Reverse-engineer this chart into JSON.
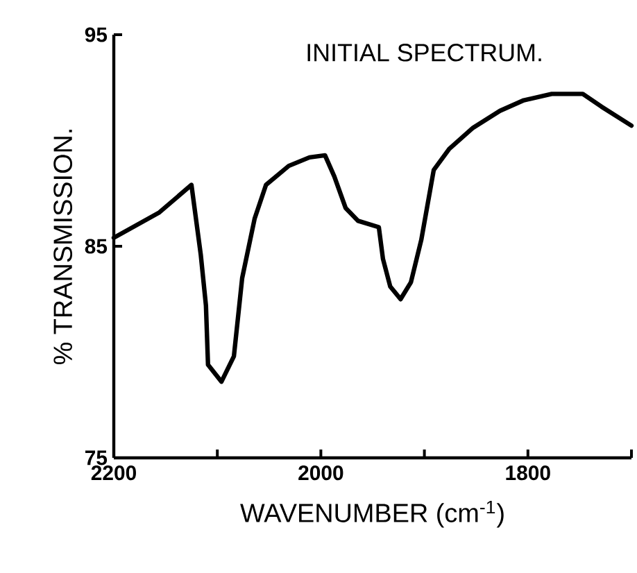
{
  "chart_data": {
    "type": "line",
    "title": "INITIAL SPECTRUM.",
    "xlabel": "WAVENUMBER (cm$^{-1}$)",
    "ylabel": "% TRANSMISSION.",
    "x": [
      2200,
      2156,
      2125,
      2116,
      2111,
      2109,
      2096,
      2084,
      2076,
      2064,
      2053,
      2031,
      2011,
      1996,
      1987,
      1976,
      1964,
      1944,
      1940,
      1933,
      1923,
      1913,
      1903,
      1891,
      1876,
      1853,
      1827,
      1804,
      1777,
      1747,
      1729,
      1700
    ],
    "series": [
      {
        "color": "#000000",
        "values": [
          85.4,
          86.6,
          87.9,
          84.6,
          82.2,
          79.4,
          78.6,
          79.8,
          83.5,
          86.3,
          87.9,
          88.8,
          89.2,
          89.3,
          88.3,
          86.8,
          86.2,
          85.9,
          84.4,
          83.1,
          82.5,
          83.3,
          85.3,
          88.6,
          89.6,
          90.6,
          91.4,
          91.9,
          92.2,
          92.2,
          91.6,
          90.7
        ]
      }
    ],
    "xlim": [
      2200,
      1700
    ],
    "xticks": [
      2200,
      {
        "value": 2100,
        "label": null
      },
      2000,
      {
        "value": 1900,
        "label": null
      },
      1800,
      {
        "value": 1700,
        "label": null
      }
    ],
    "ylim": [
      75,
      95
    ],
    "yticks": [
      75,
      85,
      95
    ],
    "marker": "none",
    "line_style": "solid"
  }
}
